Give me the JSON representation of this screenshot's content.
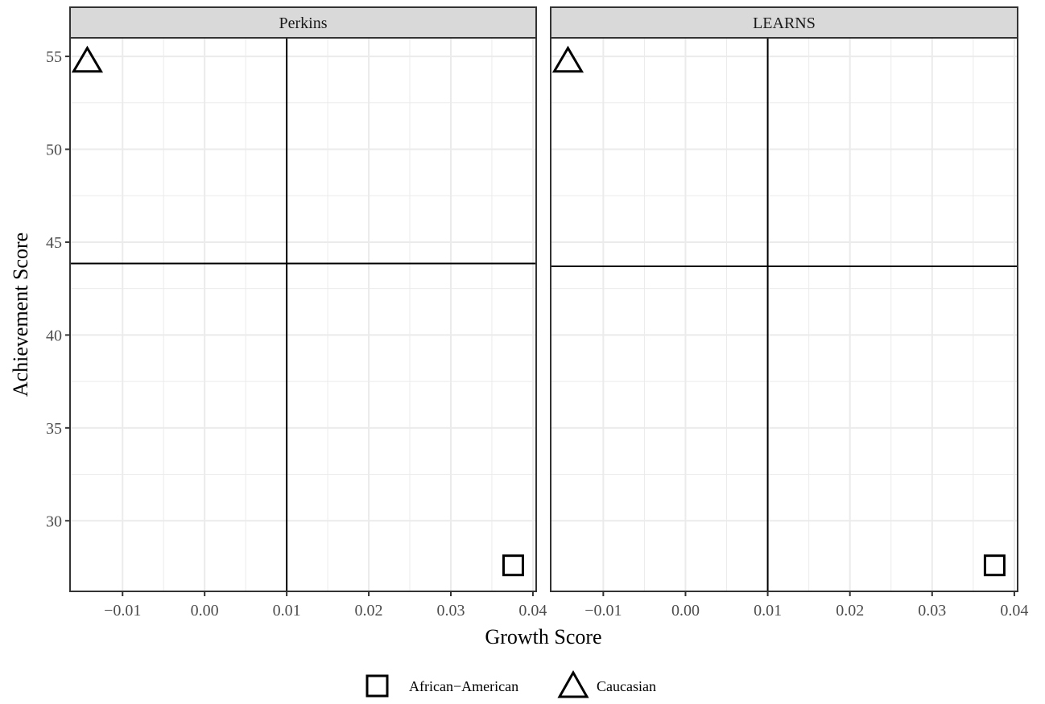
{
  "chart_data": {
    "type": "scatter",
    "xlabel": "Growth Score",
    "ylabel": "Achievement Score",
    "xlim": [
      -0.0164,
      0.0404
    ],
    "ylim": [
      26.2,
      56.0
    ],
    "x_ticks": [
      -0.01,
      0.0,
      0.01,
      0.02,
      0.03,
      0.04
    ],
    "x_tick_labels": [
      "−0.01",
      "0.00",
      "0.01",
      "0.02",
      "0.03",
      "0.04"
    ],
    "y_ticks": [
      30,
      35,
      40,
      45,
      50,
      55
    ],
    "y_tick_labels": [
      "30",
      "35",
      "40",
      "45",
      "50",
      "55"
    ],
    "grid": true,
    "legend_position": "bottom",
    "legend": [
      {
        "label": "African−American",
        "shape": "square"
      },
      {
        "label": "Caucasian",
        "shape": "triangle"
      }
    ],
    "panels": [
      {
        "title": "Perkins",
        "vline_x": 0.01,
        "hline_y": 43.85,
        "points": [
          {
            "group": "Caucasian",
            "shape": "triangle",
            "x": -0.0143,
            "y": 54.8
          },
          {
            "group": "African−American",
            "shape": "square",
            "x": 0.0376,
            "y": 27.6
          }
        ]
      },
      {
        "title": "LEARNS",
        "vline_x": 0.01,
        "hline_y": 43.7,
        "points": [
          {
            "group": "Caucasian",
            "shape": "triangle",
            "x": -0.0143,
            "y": 54.8
          },
          {
            "group": "African−American",
            "shape": "square",
            "x": 0.0376,
            "y": 27.6
          }
        ]
      }
    ],
    "colors": {
      "strip_fill": "#d9d9d9",
      "grid": "#ebebeb",
      "frame": "#333333",
      "ink": "#000000",
      "tick_text": "#4d4d4d"
    }
  }
}
